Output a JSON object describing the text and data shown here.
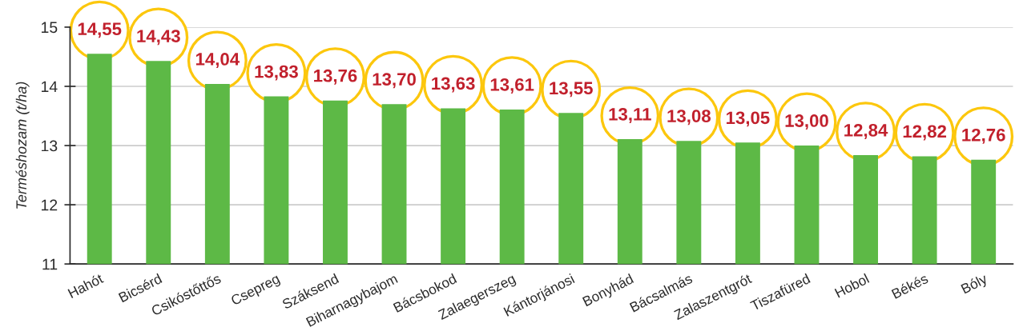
{
  "chart_data": {
    "type": "bar",
    "ylabel": "Terméshozam (t/ha)",
    "categories": [
      "Hahót",
      "Bicsérd",
      "Csikóstőttős",
      "Csepreg",
      "Száksend",
      "Biharnagybajom",
      "Bácsbokod",
      "Zalaegerszeg",
      "Kántorjánosi",
      "Bonyhád",
      "Bácsalmás",
      "Zalaszentgrót",
      "Tiszafüred",
      "Hobol",
      "Békés",
      "Bóly"
    ],
    "values": [
      14.55,
      14.43,
      14.04,
      13.83,
      13.76,
      13.7,
      13.63,
      13.61,
      13.55,
      13.11,
      13.08,
      13.05,
      13.0,
      12.84,
      12.82,
      12.76
    ],
    "value_labels": [
      "14,55",
      "14,43",
      "14,04",
      "13,83",
      "13,76",
      "13,70",
      "13,63",
      "13,61",
      "13,55",
      "13,11",
      "13,08",
      "13,05",
      "13,00",
      "12,84",
      "12,82",
      "12,76"
    ],
    "color": "#5db946",
    "ylim": [
      11,
      15
    ],
    "yticks": [
      11,
      12,
      13,
      14,
      15
    ],
    "grid": "y"
  }
}
